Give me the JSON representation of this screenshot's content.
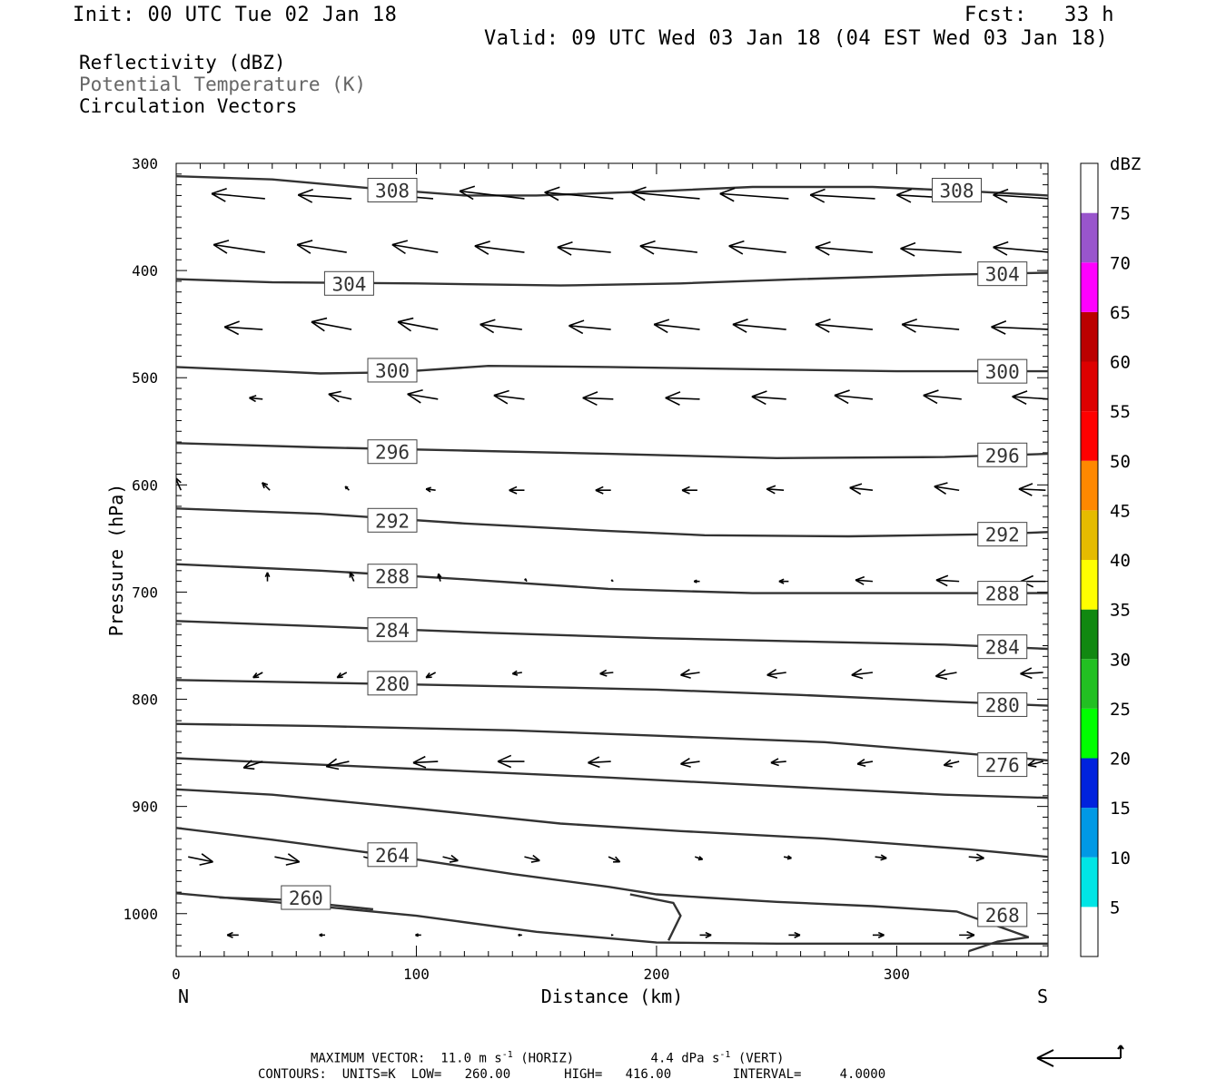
{
  "header": {
    "init": "Init: 00 UTC Tue 02 Jan 18",
    "fcst": "Fcst:   33 h",
    "valid": "Valid: 09 UTC Wed 03 Jan 18 (04 EST Wed 03 Jan 18)"
  },
  "fields": [
    {
      "label": "Reflectivity (dBZ)",
      "color": "#000000"
    },
    {
      "label": "Potential Temperature (K)",
      "color": "#666666"
    },
    {
      "label": "Circulation Vectors",
      "color": "#000000"
    }
  ],
  "footer": {
    "max_vector_prefix": "MAXIMUM VECTOR:  11.0 m s",
    "max_vector_horiz": "(HORIZ)",
    "max_vector_vert_prefix": "4.4 dPa s",
    "max_vector_vert": "(VERT)",
    "exp": "-1",
    "contours": "CONTOURS:  UNITS=K  LOW=   260.00       HIGH=   416.00        INTERVAL=     4.0000"
  },
  "chart_data": {
    "type": "cross-section",
    "xlabel": "Distance (km)",
    "ylabel": "Pressure (hPa)",
    "x_ticks": [
      0,
      100,
      200,
      300
    ],
    "y_ticks": [
      300,
      400,
      500,
      600,
      700,
      800,
      900,
      1000
    ],
    "xlim": [
      0,
      363
    ],
    "ylim": [
      1040,
      300
    ],
    "x_left_label": "N",
    "x_right_label": "S",
    "colorbar": {
      "title": "dBZ",
      "levels": [
        5,
        10,
        15,
        20,
        25,
        30,
        35,
        40,
        45,
        50,
        55,
        60,
        65,
        70,
        75
      ],
      "colors": [
        "#ffffff",
        "#00e5e5",
        "#0099e5",
        "#0022dd",
        "#00ff00",
        "#22c022",
        "#118811",
        "#ffff00",
        "#e5bb00",
        "#ff8800",
        "#ff0000",
        "#dd0000",
        "#bb0000",
        "#ff00ff",
        "#9955cc",
        "#ffffff"
      ]
    },
    "theta_contours": [
      {
        "value": "308",
        "points": [
          [
            0,
            312
          ],
          [
            40,
            315
          ],
          [
            80,
            323
          ],
          [
            120,
            330
          ],
          [
            150,
            330
          ],
          [
            200,
            326
          ],
          [
            240,
            322
          ],
          [
            290,
            322
          ],
          [
            330,
            326
          ],
          [
            363,
            330
          ]
        ],
        "labels": [
          [
            90,
            325
          ],
          [
            325,
            325
          ]
        ]
      },
      {
        "value": "304",
        "points": [
          [
            0,
            408
          ],
          [
            40,
            411
          ],
          [
            100,
            412
          ],
          [
            160,
            414
          ],
          [
            210,
            412
          ],
          [
            260,
            408
          ],
          [
            320,
            404
          ],
          [
            363,
            402
          ]
        ],
        "labels": [
          [
            72,
            412
          ],
          [
            344,
            403
          ]
        ]
      },
      {
        "value": "300",
        "points": [
          [
            0,
            490
          ],
          [
            40,
            494
          ],
          [
            60,
            496
          ],
          [
            90,
            495
          ],
          [
            130,
            489
          ],
          [
            180,
            490
          ],
          [
            240,
            492
          ],
          [
            300,
            494
          ],
          [
            363,
            494
          ]
        ],
        "labels": [
          [
            90,
            493
          ],
          [
            344,
            494
          ]
        ]
      },
      {
        "value": "296",
        "points": [
          [
            0,
            561
          ],
          [
            60,
            565
          ],
          [
            120,
            568
          ],
          [
            180,
            571
          ],
          [
            250,
            575
          ],
          [
            320,
            574
          ],
          [
            363,
            571
          ]
        ],
        "labels": [
          [
            90,
            569
          ],
          [
            344,
            572
          ]
        ]
      },
      {
        "value": "292",
        "points": [
          [
            0,
            622
          ],
          [
            60,
            627
          ],
          [
            120,
            636
          ],
          [
            180,
            643
          ],
          [
            220,
            647
          ],
          [
            280,
            648
          ],
          [
            340,
            646
          ],
          [
            363,
            644
          ]
        ],
        "labels": [
          [
            90,
            633
          ],
          [
            344,
            646
          ]
        ]
      },
      {
        "value": "288",
        "points": [
          [
            0,
            674
          ],
          [
            60,
            680
          ],
          [
            120,
            688
          ],
          [
            180,
            697
          ],
          [
            240,
            701
          ],
          [
            300,
            701
          ],
          [
            363,
            701
          ]
        ],
        "labels": [
          [
            90,
            685
          ],
          [
            344,
            701
          ]
        ]
      },
      {
        "value": "284",
        "points": [
          [
            0,
            727
          ],
          [
            60,
            732
          ],
          [
            130,
            738
          ],
          [
            200,
            743
          ],
          [
            260,
            746
          ],
          [
            320,
            749
          ],
          [
            363,
            753
          ]
        ],
        "labels": [
          [
            90,
            735
          ],
          [
            344,
            751
          ]
        ]
      },
      {
        "value": "280",
        "points": [
          [
            0,
            782
          ],
          [
            70,
            785
          ],
          [
            140,
            788
          ],
          [
            200,
            791
          ],
          [
            260,
            796
          ],
          [
            320,
            802
          ],
          [
            363,
            806
          ]
        ],
        "labels": [
          [
            90,
            785
          ],
          [
            344,
            805
          ]
        ]
      },
      {
        "value": "",
        "points": [
          [
            0,
            823
          ],
          [
            60,
            825
          ],
          [
            140,
            829
          ],
          [
            200,
            834
          ],
          [
            270,
            840
          ],
          [
            320,
            849
          ],
          [
            363,
            857
          ]
        ],
        "labels": []
      },
      {
        "value": "276",
        "points": [
          [
            0,
            855
          ],
          [
            50,
            860
          ],
          [
            110,
            866
          ],
          [
            180,
            873
          ],
          [
            250,
            881
          ],
          [
            320,
            889
          ],
          [
            363,
            892
          ]
        ],
        "labels": [
          [
            344,
            861
          ]
        ]
      },
      {
        "value": "",
        "points": [
          [
            0,
            884
          ],
          [
            40,
            889
          ],
          [
            100,
            902
          ],
          [
            160,
            916
          ],
          [
            210,
            923
          ],
          [
            270,
            930
          ],
          [
            330,
            940
          ],
          [
            363,
            947
          ]
        ],
        "labels": []
      },
      {
        "value": "264",
        "points": [
          [
            0,
            920
          ],
          [
            40,
            931
          ],
          [
            90,
            946
          ],
          [
            140,
            963
          ],
          [
            180,
            975
          ],
          [
            200,
            982
          ],
          [
            220,
            985
          ],
          [
            250,
            989
          ],
          [
            290,
            993
          ],
          [
            325,
            998
          ],
          [
            340,
            1010
          ],
          [
            355,
            1022
          ]
        ],
        "labels": [
          [
            90,
            945
          ]
        ]
      },
      {
        "value": "",
        "points": [
          [
            189,
            982
          ],
          [
            207,
            990
          ],
          [
            210,
            1002
          ],
          [
            205,
            1025
          ]
        ],
        "labels": []
      },
      {
        "value": "268",
        "points": [
          [
            355,
            1022
          ],
          [
            342,
            1026
          ],
          [
            330,
            1035
          ]
        ],
        "labels": [
          [
            344,
            1001
          ]
        ]
      },
      {
        "value": "260",
        "points": [
          [
            0,
            981
          ],
          [
            40,
            989
          ],
          [
            100,
            1002
          ],
          [
            150,
            1017
          ],
          [
            200,
            1027
          ],
          [
            250,
            1028
          ],
          [
            363,
            1028
          ]
        ],
        "labels": [
          [
            54,
            985
          ]
        ]
      },
      {
        "value": "",
        "points": [
          [
            18,
            985
          ],
          [
            45,
            987
          ],
          [
            65,
            992
          ],
          [
            82,
            996
          ]
        ],
        "labels": []
      }
    ],
    "vector_rows": [
      {
        "p": 333,
        "vectors": [
          [
            37,
            -28,
            -4
          ],
          [
            73,
            -28,
            -3
          ],
          [
            107,
            -32,
            -4
          ],
          [
            145,
            -34,
            -6
          ],
          [
            182,
            -36,
            -5
          ],
          [
            218,
            -36,
            -5
          ],
          [
            255,
            -36,
            -4
          ],
          [
            291,
            -34,
            -3
          ],
          [
            327,
            -34,
            -3
          ],
          [
            364,
            -30,
            -3
          ]
        ]
      },
      {
        "p": 383,
        "vectors": [
          [
            37,
            -27,
            -6
          ],
          [
            71,
            -26,
            -6
          ],
          [
            109,
            -24,
            -6
          ],
          [
            145,
            -26,
            -5
          ],
          [
            181,
            -28,
            -4
          ],
          [
            217,
            -30,
            -5
          ],
          [
            254,
            -30,
            -5
          ],
          [
            290,
            -30,
            -4
          ],
          [
            327,
            -32,
            -3
          ],
          [
            364,
            -30,
            -4
          ]
        ]
      },
      {
        "p": 455,
        "vectors": [
          [
            36,
            -20,
            -2
          ],
          [
            73,
            -21,
            -6
          ],
          [
            109,
            -21,
            -6
          ],
          [
            144,
            -22,
            -4
          ],
          [
            181,
            -22,
            -3
          ],
          [
            218,
            -24,
            -4
          ],
          [
            254,
            -28,
            -4
          ],
          [
            290,
            -30,
            -4
          ],
          [
            326,
            -30,
            -4
          ],
          [
            364,
            -31,
            -2
          ]
        ]
      },
      {
        "p": 520,
        "vectors": [
          [
            36,
            -7,
            -1
          ],
          [
            73,
            -12,
            -4
          ],
          [
            109,
            -16,
            -4
          ],
          [
            145,
            -16,
            -3
          ],
          [
            182,
            -16,
            -1
          ],
          [
            218,
            -18,
            -1
          ],
          [
            254,
            -18,
            -2
          ],
          [
            290,
            -20,
            -3
          ],
          [
            327,
            -20,
            -3
          ],
          [
            364,
            -20,
            -2
          ]
        ]
      },
      {
        "p": 605,
        "vectors": [
          [
            2,
            -3,
            -10
          ],
          [
            39,
            -4,
            -6
          ],
          [
            72,
            -2,
            -3
          ],
          [
            108,
            -5,
            -1
          ],
          [
            145,
            -8,
            0
          ],
          [
            181,
            -8,
            0
          ],
          [
            217,
            -8,
            0
          ],
          [
            253,
            -9,
            -1
          ],
          [
            290,
            -12,
            -2
          ],
          [
            326,
            -13,
            -3
          ],
          [
            362,
            -14,
            -1
          ]
        ]
      },
      {
        "p": 690,
        "vectors": [
          [
            38,
            0,
            -7
          ],
          [
            74,
            -2,
            -7
          ],
          [
            110,
            -1,
            -6
          ],
          [
            146,
            -1,
            -2
          ],
          [
            182,
            -1,
            -1
          ],
          [
            218,
            -3,
            0
          ],
          [
            255,
            -5,
            0
          ],
          [
            290,
            -9,
            -1
          ],
          [
            326,
            -12,
            -1
          ],
          [
            362,
            -13,
            0
          ]
        ]
      },
      {
        "p": 775,
        "vectors": [
          [
            36,
            -5,
            4
          ],
          [
            71,
            -5,
            4
          ],
          [
            108,
            -5,
            4
          ],
          [
            144,
            -5,
            1
          ],
          [
            182,
            -7,
            1
          ],
          [
            218,
            -10,
            2
          ],
          [
            254,
            -10,
            2
          ],
          [
            290,
            -11,
            2
          ],
          [
            325,
            -11,
            3
          ],
          [
            361,
            -12,
            1
          ]
        ]
      },
      {
        "p": 858,
        "vectors": [
          [
            36,
            -10,
            5
          ],
          [
            72,
            -12,
            4
          ],
          [
            109,
            -13,
            1
          ],
          [
            145,
            -14,
            0
          ],
          [
            181,
            -12,
            1
          ],
          [
            218,
            -10,
            2
          ],
          [
            254,
            -8,
            1
          ],
          [
            290,
            -8,
            2
          ],
          [
            326,
            -8,
            3
          ],
          [
            361,
            -8,
            3
          ]
        ]
      },
      {
        "p": 947,
        "vectors": [
          [
            5,
            13,
            4
          ],
          [
            41,
            13,
            4
          ],
          [
            78,
            10,
            4
          ],
          [
            111,
            8,
            3
          ],
          [
            145,
            8,
            3
          ],
          [
            180,
            6,
            4
          ],
          [
            216,
            4,
            2
          ],
          [
            253,
            4,
            1
          ],
          [
            291,
            6,
            1
          ],
          [
            330,
            8,
            1
          ]
        ]
      },
      {
        "p": 1020,
        "vectors": [
          [
            26,
            -6,
            0
          ],
          [
            62,
            -3,
            0
          ],
          [
            102,
            -3,
            0
          ],
          [
            144,
            -2,
            0
          ],
          [
            182,
            -1,
            0
          ],
          [
            218,
            6,
            0
          ],
          [
            255,
            6,
            0
          ],
          [
            290,
            6,
            0
          ],
          [
            326,
            8,
            0
          ]
        ]
      }
    ]
  }
}
